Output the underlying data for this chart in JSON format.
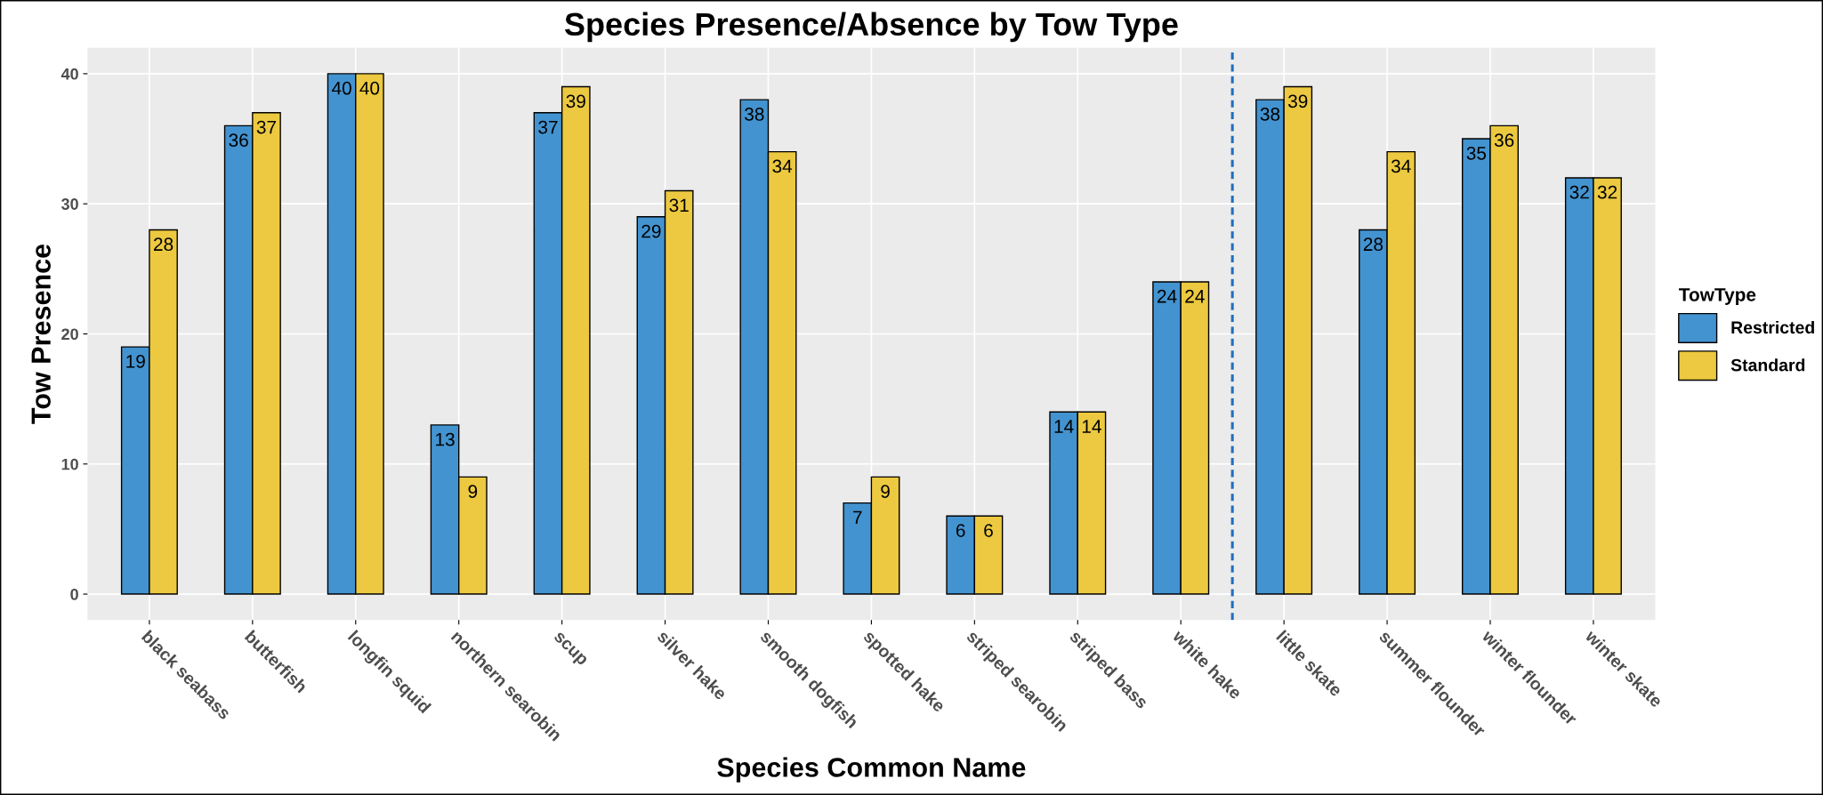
{
  "chart_data": {
    "type": "bar",
    "title": "Species Presence/Absence by Tow Type",
    "xlabel": "Species Common Name",
    "ylabel": "Tow Presence",
    "legend_title": "TowType",
    "categories": [
      "black seabass",
      "butterfish",
      "longfin squid",
      "northern searobin",
      "scup",
      "silver hake",
      "smooth dogfish",
      "spotted hake",
      "striped searobin",
      "striped bass",
      "white hake",
      "little skate",
      "summer flounder",
      "winter flounder",
      "winter skate"
    ],
    "series": [
      {
        "name": "Restricted",
        "color": "#4393d0",
        "values": [
          19,
          36,
          40,
          13,
          37,
          29,
          38,
          7,
          6,
          14,
          24,
          38,
          28,
          35,
          32
        ]
      },
      {
        "name": "Standard",
        "color": "#ecc940",
        "values": [
          28,
          37,
          40,
          9,
          39,
          31,
          34,
          9,
          6,
          14,
          24,
          39,
          34,
          36,
          32
        ]
      }
    ],
    "ylim": [
      -2,
      42
    ],
    "yticks": [
      0,
      10,
      20,
      30,
      40
    ],
    "grid": true,
    "legend": "right",
    "data_labels": true
  }
}
